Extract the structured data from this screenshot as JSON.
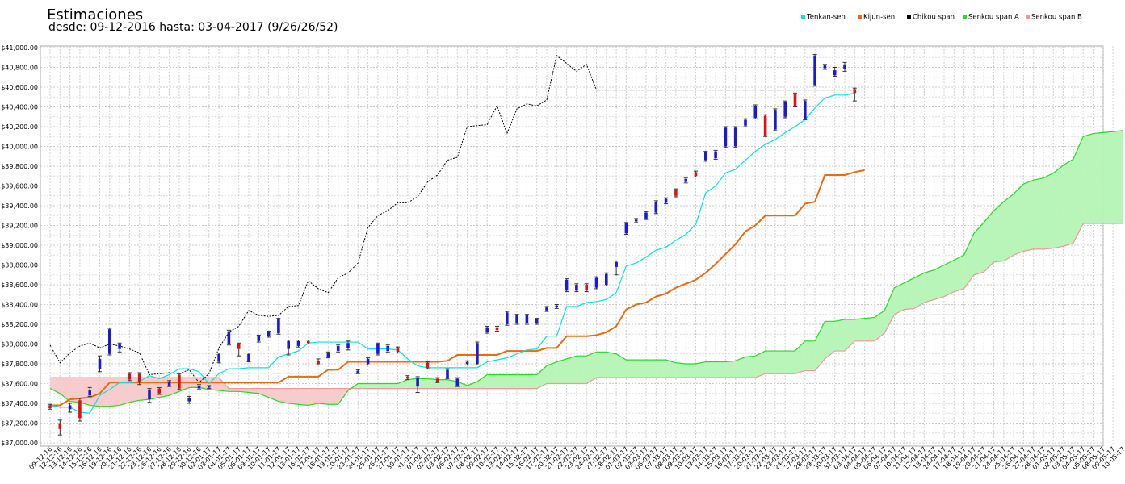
{
  "chart_data": {
    "type": "candlestick",
    "title": "Estimaciones",
    "subtitle": "desde: 09-12-2016 hasta: 03-04-2017 (9/26/26/52)",
    "xlabel": "",
    "ylabel": "",
    "ylim": [
      37000,
      41000
    ],
    "yticks": [
      "$37,000.00",
      "$37,200.00",
      "$37,400.00",
      "$37,600.00",
      "$37,800.00",
      "$38,000.00",
      "$38,200.00",
      "$38,400.00",
      "$38,600.00",
      "$38,800.00",
      "$39,000.00",
      "$39,200.00",
      "$39,400.00",
      "$39,600.00",
      "$39,800.00",
      "$40,000.00",
      "$40,200.00",
      "$40,400.00",
      "$40,600.00",
      "$40,800.00",
      "$41,000.00"
    ],
    "grid": true,
    "legend_position": "top-right",
    "legend": [
      {
        "name": "Tenkan-sen",
        "color": "#00e5e5"
      },
      {
        "name": "Kijun-sen",
        "color": "#ec6a10"
      },
      {
        "name": "Chikou span",
        "color": "#000000"
      },
      {
        "name": "Senkou span A",
        "color": "#22dd22"
      },
      {
        "name": "Senkou span B",
        "color": "#ee9999"
      }
    ],
    "x": [
      "09-12-16",
      "12-12-16",
      "13-12-16",
      "14-12-16",
      "15-12-16",
      "16-12-16",
      "19-12-16",
      "20-12-16",
      "21-12-16",
      "22-12-16",
      "23-12-16",
      "26-12-16",
      "27-12-16",
      "28-12-16",
      "29-12-16",
      "30-12-16",
      "02-01-17",
      "03-01-17",
      "04-01-17",
      "05-01-17",
      "06-01-17",
      "09-01-17",
      "10-01-17",
      "11-01-17",
      "12-01-17",
      "13-01-17",
      "16-01-17",
      "17-01-17",
      "18-01-17",
      "19-01-17",
      "20-01-17",
      "23-01-17",
      "24-01-17",
      "25-01-17",
      "26-01-17",
      "27-01-17",
      "30-01-17",
      "31-01-17",
      "01-02-17",
      "02-02-17",
      "03-02-17",
      "06-02-17",
      "07-02-17",
      "08-02-17",
      "09-02-17",
      "10-02-17",
      "13-02-17",
      "14-02-17",
      "15-02-17",
      "16-02-17",
      "17-02-17",
      "20-02-17",
      "21-02-17",
      "22-02-17",
      "23-02-17",
      "24-02-17",
      "27-02-17",
      "28-02-17",
      "01-03-17",
      "02-03-17",
      "03-03-17",
      "06-03-17",
      "07-03-17",
      "08-03-17",
      "09-03-17",
      "10-03-17",
      "13-03-17",
      "14-03-17",
      "15-03-17",
      "16-03-17",
      "17-03-17",
      "20-03-17",
      "21-03-17",
      "22-03-17",
      "23-03-17",
      "24-03-17",
      "27-03-17",
      "28-03-17",
      "29-03-17",
      "30-03-17",
      "31-03-17",
      "03-04-17",
      "04-04-17",
      "05-04-17",
      "06-04-17",
      "07-04-17",
      "10-04-17",
      "11-04-17",
      "12-04-17",
      "13-04-17",
      "14-04-17",
      "17-04-17",
      "18-04-17",
      "19-04-17",
      "20-04-17",
      "21-04-17",
      "24-04-17",
      "25-04-17",
      "26-04-17",
      "27-04-17",
      "28-04-17",
      "01-05-17",
      "02-05-17",
      "03-05-17",
      "04-05-17",
      "05-05-17",
      "08-05-17",
      "09-05-17",
      "10-05-17"
    ],
    "candles": [
      {
        "o": 37380,
        "c": 37350,
        "h": 37390,
        "l": 37340
      },
      {
        "o": 37200,
        "c": 37140,
        "h": 37230,
        "l": 37080
      },
      {
        "o": 37340,
        "c": 37380,
        "h": 37400,
        "l": 37310
      },
      {
        "o": 37430,
        "c": 37250,
        "h": 37450,
        "l": 37220
      },
      {
        "o": 37480,
        "c": 37530,
        "h": 37560,
        "l": 37470
      },
      {
        "o": 37750,
        "c": 37850,
        "h": 37880,
        "l": 37720
      },
      {
        "o": 37900,
        "c": 38150,
        "h": 38160,
        "l": 37890
      },
      {
        "o": 37950,
        "c": 38000,
        "h": 38010,
        "l": 37920
      },
      {
        "o": 37700,
        "c": 37640,
        "h": 37710,
        "l": 37630
      },
      {
        "o": 37700,
        "c": 37610,
        "h": 37710,
        "l": 37590
      },
      {
        "o": 37440,
        "c": 37540,
        "h": 37550,
        "l": 37410
      },
      {
        "o": 37550,
        "c": 37500,
        "h": 37560,
        "l": 37490
      },
      {
        "o": 37580,
        "c": 37620,
        "h": 37630,
        "l": 37570
      },
      {
        "o": 37690,
        "c": 37550,
        "h": 37700,
        "l": 37540
      },
      {
        "o": 37420,
        "c": 37450,
        "h": 37470,
        "l": 37400
      },
      {
        "o": 37550,
        "c": 37580,
        "h": 37590,
        "l": 37540
      },
      {
        "o": 37560,
        "c": 37570,
        "h": 37580,
        "l": 37550
      },
      {
        "o": 37820,
        "c": 37900,
        "h": 37910,
        "l": 37810
      },
      {
        "o": 38000,
        "c": 38130,
        "h": 38140,
        "l": 37990
      },
      {
        "o": 38000,
        "c": 37950,
        "h": 38010,
        "l": 37880
      },
      {
        "o": 37830,
        "c": 37900,
        "h": 37910,
        "l": 37820
      },
      {
        "o": 38030,
        "c": 38080,
        "h": 38090,
        "l": 38020
      },
      {
        "o": 38080,
        "c": 38120,
        "h": 38130,
        "l": 38070
      },
      {
        "o": 38110,
        "c": 38250,
        "h": 38260,
        "l": 38100
      },
      {
        "o": 37950,
        "c": 38030,
        "h": 38040,
        "l": 37890
      },
      {
        "o": 37980,
        "c": 38030,
        "h": 38040,
        "l": 37970
      },
      {
        "o": 38030,
        "c": 38010,
        "h": 38040,
        "l": 38000
      },
      {
        "o": 37830,
        "c": 37800,
        "h": 37850,
        "l": 37790
      },
      {
        "o": 37870,
        "c": 37910,
        "h": 37920,
        "l": 37860
      },
      {
        "o": 37930,
        "c": 37980,
        "h": 37990,
        "l": 37920
      },
      {
        "o": 37960,
        "c": 38010,
        "h": 38030,
        "l": 37940
      },
      {
        "o": 37710,
        "c": 37730,
        "h": 37740,
        "l": 37700
      },
      {
        "o": 37800,
        "c": 37850,
        "h": 37860,
        "l": 37790
      },
      {
        "o": 37900,
        "c": 38000,
        "h": 38010,
        "l": 37890
      },
      {
        "o": 37930,
        "c": 37980,
        "h": 37990,
        "l": 37920
      },
      {
        "o": 37960,
        "c": 37920,
        "h": 37970,
        "l": 37910
      },
      {
        "o": 37670,
        "c": 37650,
        "h": 37680,
        "l": 37640
      },
      {
        "o": 37570,
        "c": 37660,
        "h": 37670,
        "l": 37510
      },
      {
        "o": 37810,
        "c": 37760,
        "h": 37820,
        "l": 37750
      },
      {
        "o": 37650,
        "c": 37620,
        "h": 37660,
        "l": 37610
      },
      {
        "o": 37660,
        "c": 37740,
        "h": 37750,
        "l": 37650
      },
      {
        "o": 37580,
        "c": 37650,
        "h": 37660,
        "l": 37570
      },
      {
        "o": 37800,
        "c": 37820,
        "h": 37830,
        "l": 37790
      },
      {
        "o": 37800,
        "c": 38010,
        "h": 38020,
        "l": 37790
      },
      {
        "o": 38120,
        "c": 38170,
        "h": 38180,
        "l": 38110
      },
      {
        "o": 38170,
        "c": 38140,
        "h": 38180,
        "l": 38130
      },
      {
        "o": 38200,
        "c": 38320,
        "h": 38330,
        "l": 38190
      },
      {
        "o": 38210,
        "c": 38290,
        "h": 38300,
        "l": 38200
      },
      {
        "o": 38210,
        "c": 38290,
        "h": 38300,
        "l": 38200
      },
      {
        "o": 38210,
        "c": 38250,
        "h": 38260,
        "l": 38200
      },
      {
        "o": 38340,
        "c": 38370,
        "h": 38380,
        "l": 38330
      },
      {
        "o": 38370,
        "c": 38390,
        "h": 38400,
        "l": 38360
      },
      {
        "o": 38540,
        "c": 38650,
        "h": 38660,
        "l": 38530
      },
      {
        "o": 38540,
        "c": 38600,
        "h": 38610,
        "l": 38530
      },
      {
        "o": 38600,
        "c": 38540,
        "h": 38610,
        "l": 38530
      },
      {
        "o": 38570,
        "c": 38670,
        "h": 38680,
        "l": 38560
      },
      {
        "o": 38600,
        "c": 38710,
        "h": 38720,
        "l": 38590
      },
      {
        "o": 38780,
        "c": 38830,
        "h": 38840,
        "l": 38700
      },
      {
        "o": 39120,
        "c": 39220,
        "h": 39230,
        "l": 39110
      },
      {
        "o": 39240,
        "c": 39260,
        "h": 39270,
        "l": 39230
      },
      {
        "o": 39270,
        "c": 39330,
        "h": 39340,
        "l": 39260
      },
      {
        "o": 39330,
        "c": 39440,
        "h": 39450,
        "l": 39320
      },
      {
        "o": 39430,
        "c": 39470,
        "h": 39480,
        "l": 39420
      },
      {
        "o": 39560,
        "c": 39500,
        "h": 39570,
        "l": 39490
      },
      {
        "o": 39640,
        "c": 39670,
        "h": 39680,
        "l": 39630
      },
      {
        "o": 39740,
        "c": 39700,
        "h": 39750,
        "l": 39690
      },
      {
        "o": 39860,
        "c": 39940,
        "h": 39950,
        "l": 39850
      },
      {
        "o": 39880,
        "c": 39950,
        "h": 39960,
        "l": 39870
      },
      {
        "o": 40000,
        "c": 40190,
        "h": 40200,
        "l": 39990
      },
      {
        "o": 40000,
        "c": 40190,
        "h": 40200,
        "l": 39990
      },
      {
        "o": 40210,
        "c": 40270,
        "h": 40280,
        "l": 40200
      },
      {
        "o": 40290,
        "c": 40410,
        "h": 40420,
        "l": 40280
      },
      {
        "o": 40310,
        "c": 40110,
        "h": 40320,
        "l": 40100
      },
      {
        "o": 40170,
        "c": 40370,
        "h": 40380,
        "l": 40160
      },
      {
        "o": 40300,
        "c": 40450,
        "h": 40460,
        "l": 40290
      },
      {
        "o": 40530,
        "c": 40410,
        "h": 40540,
        "l": 40400
      },
      {
        "o": 40280,
        "c": 40460,
        "h": 40470,
        "l": 40270
      },
      {
        "o": 40620,
        "c": 40920,
        "h": 40930,
        "l": 40610
      },
      {
        "o": 40790,
        "c": 40820,
        "h": 40830,
        "l": 40780
      },
      {
        "o": 40720,
        "c": 40770,
        "h": 40800,
        "l": 40710
      },
      {
        "o": 40780,
        "c": 40830,
        "h": 40850,
        "l": 40760
      },
      {
        "o": 40580,
        "c": 40540,
        "h": 40590,
        "l": 40460
      }
    ],
    "tenkan": [
      37380,
      37360,
      37360,
      37310,
      37300,
      37480,
      37540,
      37610,
      37610,
      37620,
      37680,
      37650,
      37690,
      37750,
      37750,
      37720,
      37600,
      37700,
      37750,
      37750,
      37760,
      37760,
      37760,
      37870,
      37900,
      37930,
      38010,
      38020,
      38020,
      38020,
      38020,
      38020,
      37950,
      37950,
      37950,
      37940,
      37850,
      37780,
      37760,
      37760,
      37760,
      37760,
      37760,
      37760,
      37820,
      37840,
      37860,
      37900,
      37940,
      37950,
      38080,
      38080,
      38380,
      38380,
      38420,
      38430,
      38450,
      38520,
      38790,
      38820,
      38880,
      38950,
      38980,
      39050,
      39110,
      39210,
      39530,
      39600,
      39730,
      39770,
      39860,
      39950,
      40020,
      40070,
      40140,
      40200,
      40270,
      40390,
      40490,
      40520,
      40520,
      40540
    ],
    "kijun": [
      37380,
      37380,
      37440,
      37450,
      37460,
      37500,
      37610,
      37610,
      37610,
      37610,
      37610,
      37610,
      37610,
      37610,
      37610,
      37610,
      37610,
      37610,
      37610,
      37610,
      37610,
      37610,
      37610,
      37610,
      37670,
      37670,
      37670,
      37670,
      37740,
      37740,
      37820,
      37820,
      37820,
      37820,
      37820,
      37820,
      37820,
      37820,
      37820,
      37820,
      37830,
      37890,
      37890,
      37890,
      37890,
      37890,
      37930,
      37930,
      37930,
      37930,
      37960,
      37960,
      38080,
      38080,
      38080,
      38090,
      38120,
      38180,
      38350,
      38400,
      38420,
      38480,
      38510,
      38570,
      38610,
      38650,
      38720,
      38810,
      38910,
      39010,
      39140,
      39200,
      39300,
      39300,
      39300,
      39300,
      39420,
      39440,
      39710,
      39710,
      39710,
      39740,
      39760
    ],
    "chikou_values": [
      37990,
      37810,
      37910,
      37980,
      38010,
      37960,
      38000,
      37980,
      37950,
      37910,
      37690,
      37700,
      37710,
      37700,
      37740,
      37610,
      37700,
      37960,
      38120,
      38180,
      38340,
      38290,
      38280,
      38290,
      38380,
      38390,
      38640,
      38560,
      38520,
      38670,
      38720,
      38820,
      39180,
      39300,
      39350,
      39430,
      39430,
      39490,
      39640,
      39710,
      39860,
      39890,
      40200,
      40210,
      40220,
      40410,
      40130,
      40380,
      40430,
      40410,
      40470,
      40920,
      40840,
      40760,
      40830,
      40570,
      40570,
      40570,
      40570,
      40570,
      40570,
      40570,
      40570,
      40570,
      40570,
      40570,
      40570,
      40570,
      40570,
      40570,
      40570,
      40570,
      40570,
      40570,
      40570,
      40570,
      40570,
      40570,
      40570,
      40570,
      40570,
      40570
    ],
    "senkou_a": [
      37550,
      37500,
      37420,
      37410,
      37380,
      37370,
      37370,
      37380,
      37410,
      37430,
      37440,
      37460,
      37480,
      37520,
      37560,
      37560,
      37540,
      37530,
      37520,
      37520,
      37510,
      37500,
      37460,
      37420,
      37400,
      37390,
      37380,
      37400,
      37390,
      37390,
      37530,
      37600,
      37600,
      37600,
      37600,
      37600,
      37640,
      37650,
      37650,
      37640,
      37640,
      37620,
      37580,
      37620,
      37690,
      37690,
      37690,
      37690,
      37690,
      37690,
      37780,
      37820,
      37850,
      37880,
      37880,
      37920,
      37920,
      37900,
      37840,
      37840,
      37840,
      37840,
      37840,
      37810,
      37800,
      37800,
      37820,
      37820,
      37820,
      37830,
      37870,
      37880,
      37930,
      37930,
      37930,
      37930,
      38030,
      38030,
      38230,
      38230,
      38250,
      38250,
      38260,
      38270,
      38340,
      38570,
      38620,
      38670,
      38720,
      38750,
      38800,
      38850,
      38900,
      39120,
      39230,
      39350,
      39440,
      39520,
      39620,
      39660,
      39680,
      39730,
      39810,
      39870,
      40100,
      40130,
      40140,
      40150,
      40160
    ],
    "senkou_b": [
      37660,
      37660,
      37660,
      37660,
      37660,
      37660,
      37660,
      37660,
      37660,
      37660,
      37660,
      37660,
      37660,
      37660,
      37660,
      37660,
      37660,
      37660,
      37550,
      37550,
      37550,
      37550,
      37550,
      37550,
      37550,
      37550,
      37550,
      37550,
      37550,
      37550,
      37550,
      37550,
      37550,
      37550,
      37550,
      37550,
      37550,
      37550,
      37550,
      37550,
      37550,
      37550,
      37550,
      37550,
      37550,
      37550,
      37550,
      37550,
      37550,
      37550,
      37600,
      37600,
      37600,
      37600,
      37600,
      37660,
      37660,
      37660,
      37660,
      37660,
      37660,
      37660,
      37660,
      37660,
      37660,
      37660,
      37660,
      37660,
      37660,
      37660,
      37660,
      37660,
      37700,
      37700,
      37700,
      37700,
      37730,
      37730,
      37850,
      37930,
      37930,
      38030,
      38030,
      38030,
      38110,
      38300,
      38350,
      38360,
      38420,
      38450,
      38480,
      38530,
      38560,
      38700,
      38730,
      38830,
      38840,
      38900,
      38940,
      38960,
      38960,
      38970,
      38990,
      39020,
      39220,
      39220,
      39220,
      39220,
      39220
    ]
  }
}
